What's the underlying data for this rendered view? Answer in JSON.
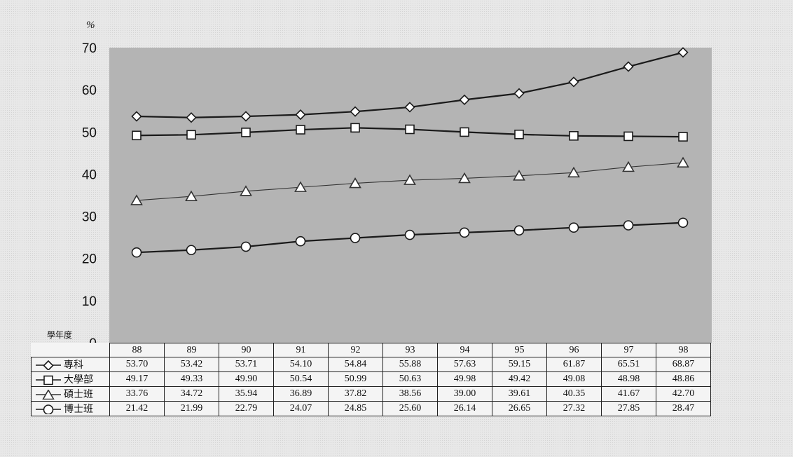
{
  "chart_data": {
    "type": "line",
    "unit": "%",
    "x_axis_name": "學年度",
    "categories": [
      "88",
      "89",
      "90",
      "91",
      "92",
      "93",
      "94",
      "95",
      "96",
      "97",
      "98"
    ],
    "ylim": [
      0,
      70
    ],
    "yticks": [
      0,
      10,
      20,
      30,
      40,
      50,
      60,
      70
    ],
    "grid": false,
    "plot_background": "#b4b4b4",
    "series": [
      {
        "name": "專科",
        "marker": "diamond",
        "color": "#1a1a1a",
        "values": [
          53.7,
          53.42,
          53.71,
          54.1,
          54.84,
          55.88,
          57.63,
          59.15,
          61.87,
          65.51,
          68.87
        ],
        "labels": [
          "53.70",
          "53.42",
          "53.71",
          "54.10",
          "54.84",
          "55.88",
          "57.63",
          "59.15",
          "61.87",
          "65.51",
          "68.87"
        ]
      },
      {
        "name": "大學部",
        "marker": "square",
        "color": "#1a1a1a",
        "values": [
          49.17,
          49.33,
          49.9,
          50.54,
          50.99,
          50.63,
          49.98,
          49.42,
          49.08,
          48.98,
          48.86
        ],
        "labels": [
          "49.17",
          "49.33",
          "49.90",
          "50.54",
          "50.99",
          "50.63",
          "49.98",
          "49.42",
          "49.08",
          "48.98",
          "48.86"
        ]
      },
      {
        "name": "碩士班",
        "marker": "triangle",
        "color": "#333333",
        "values": [
          33.76,
          34.72,
          35.94,
          36.89,
          37.82,
          38.56,
          39.0,
          39.61,
          40.35,
          41.67,
          42.7
        ],
        "labels": [
          "33.76",
          "34.72",
          "35.94",
          "36.89",
          "37.82",
          "38.56",
          "39.00",
          "39.61",
          "40.35",
          "41.67",
          "42.70"
        ]
      },
      {
        "name": "博士班",
        "marker": "circle",
        "color": "#1a1a1a",
        "values": [
          21.42,
          21.99,
          22.79,
          24.07,
          24.85,
          25.6,
          26.14,
          26.65,
          27.32,
          27.85,
          28.47
        ],
        "labels": [
          "21.42",
          "21.99",
          "22.79",
          "24.07",
          "24.85",
          "25.60",
          "26.14",
          "26.65",
          "27.32",
          "27.85",
          "28.47"
        ]
      }
    ]
  }
}
